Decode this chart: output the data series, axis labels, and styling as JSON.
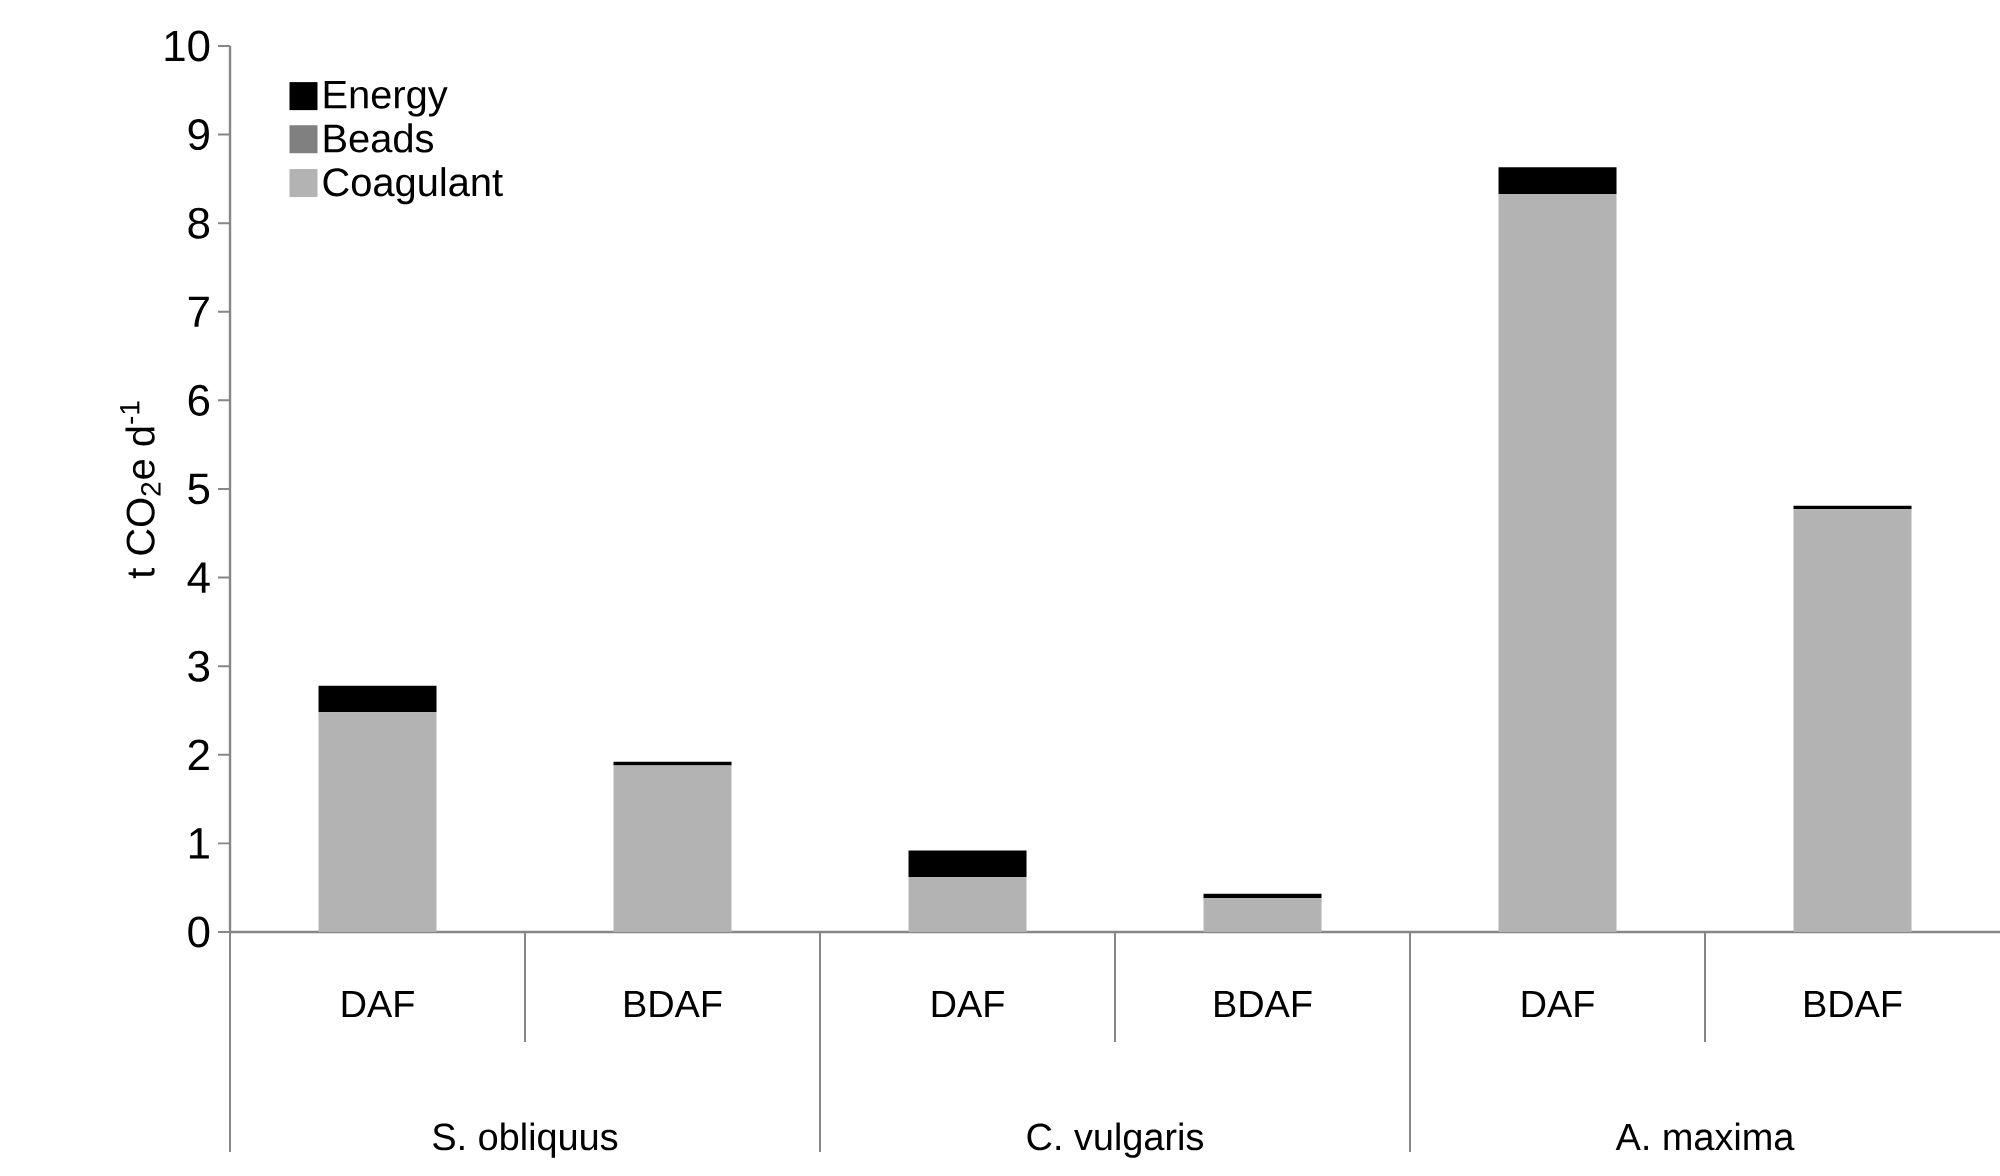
{
  "chart_data": {
    "type": "bar",
    "stacked": true,
    "ylabel": "t CO$_{2}$e d$^{-1}$",
    "categories": [
      "DAF",
      "BDAF",
      "DAF",
      "BDAF",
      "DAF",
      "BDAF"
    ],
    "annotations": [
      "S. obliquus",
      "C. vulgaris",
      "A. maxima"
    ],
    "series": [
      {
        "name": "Coagulant",
        "color": "#b3b3b3",
        "values": [
          2.48,
          1.88,
          0.62,
          0.38,
          8.33,
          4.77
        ]
      },
      {
        "name": "Beads",
        "color": "#808080",
        "values": [
          0,
          0,
          0,
          0,
          0,
          0
        ]
      },
      {
        "name": "Energy",
        "color": "#000000",
        "values": [
          0.3,
          0.04,
          0.3,
          0.05,
          0.3,
          0.04
        ]
      }
    ],
    "ylim": [
      0,
      10
    ],
    "yticks": [
      0,
      1,
      2,
      3,
      4,
      5,
      6,
      7,
      8,
      9,
      10
    ],
    "legend": "top left"
  }
}
